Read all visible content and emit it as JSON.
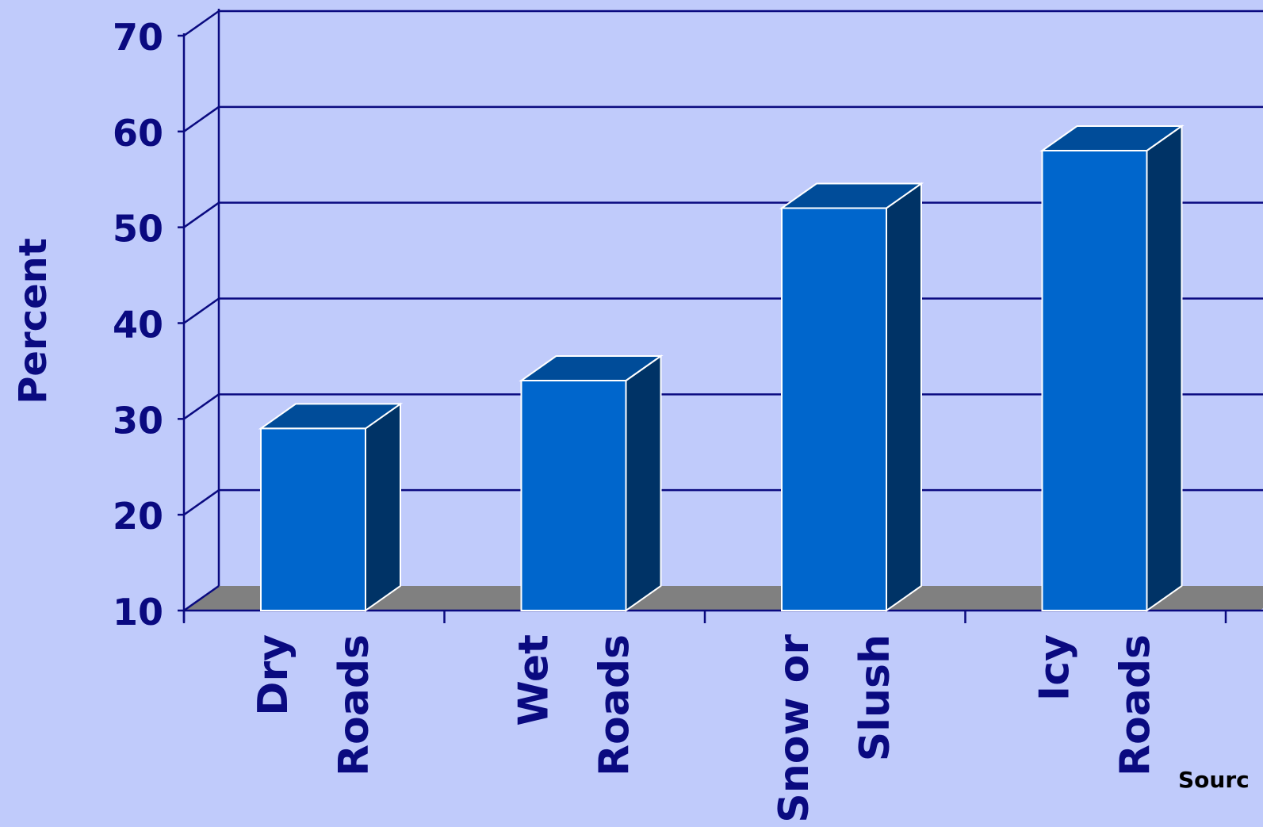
{
  "chart_data": {
    "type": "bar",
    "title": "",
    "xlabel": "",
    "ylabel": "Percent",
    "ylim": [
      10,
      70
    ],
    "yticks": [
      10,
      20,
      30,
      40,
      50,
      60,
      70
    ],
    "grid": true,
    "three_d": true,
    "categories": [
      [
        "Dry",
        "Roads"
      ],
      [
        "Wet",
        "Roads"
      ],
      [
        "Snow or",
        "Slush"
      ],
      [
        "Icy",
        "Roads"
      ]
    ],
    "values": [
      29,
      34,
      52,
      58
    ],
    "source_label": "Sourc"
  },
  "colors": {
    "background": "#c0cbfb",
    "axis": "#0a0a80",
    "text": "#0a0a80",
    "floor": "#808080",
    "bar_front": "#0066cc",
    "bar_top": "#004c99",
    "bar_side": "#003366",
    "bar_edge": "#ffffff",
    "source_text": "#000000"
  }
}
